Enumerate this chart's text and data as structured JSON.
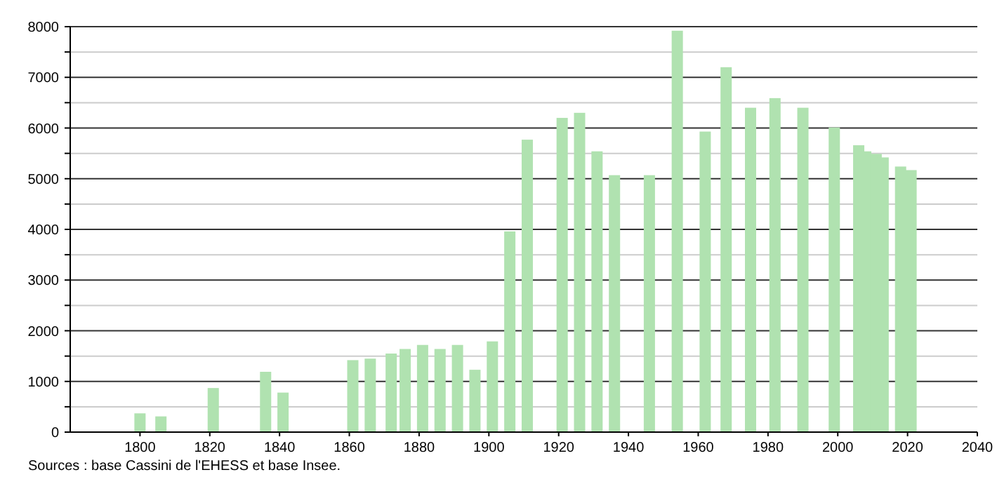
{
  "chart_data": {
    "type": "bar",
    "x": [
      1800,
      1806,
      1821,
      1836,
      1841,
      1861,
      1866,
      1872,
      1876,
      1881,
      1886,
      1891,
      1896,
      1901,
      1906,
      1911,
      1921,
      1926,
      1931,
      1936,
      1946,
      1954,
      1962,
      1968,
      1975,
      1982,
      1990,
      1999,
      2006,
      2008,
      2011,
      2013,
      2018,
      2021
    ],
    "values": [
      370,
      310,
      870,
      1190,
      780,
      1420,
      1450,
      1550,
      1640,
      1720,
      1640,
      1720,
      1230,
      1790,
      3960,
      5770,
      6200,
      6300,
      5540,
      5070,
      5070,
      7920,
      5930,
      7200,
      6400,
      6590,
      6400,
      6010,
      5660,
      5540,
      5490,
      5420,
      5240,
      5170
    ],
    "color": "#b0e2b0",
    "xlim": [
      1780,
      2040
    ],
    "xticks": [
      1800,
      1820,
      1840,
      1860,
      1880,
      1900,
      1920,
      1940,
      1960,
      1980,
      2000,
      2020,
      2040
    ],
    "ylim": [
      0,
      8000
    ],
    "yticks": [
      0,
      {
        "value": 500,
        "label": null
      },
      1000,
      {
        "value": 1500,
        "label": null
      },
      2000,
      {
        "value": 2500,
        "label": null
      },
      3000,
      {
        "value": 3500,
        "label": null
      },
      4000,
      {
        "value": 4500,
        "label": null
      },
      5000,
      {
        "value": 5500,
        "label": null
      },
      6000,
      {
        "value": 6500,
        "label": null
      },
      7000,
      {
        "value": 7500,
        "label": null
      },
      8000
    ],
    "grid": true,
    "annotations": [
      "Sources : base Cassini de l'EHESS et base Insee."
    ]
  }
}
